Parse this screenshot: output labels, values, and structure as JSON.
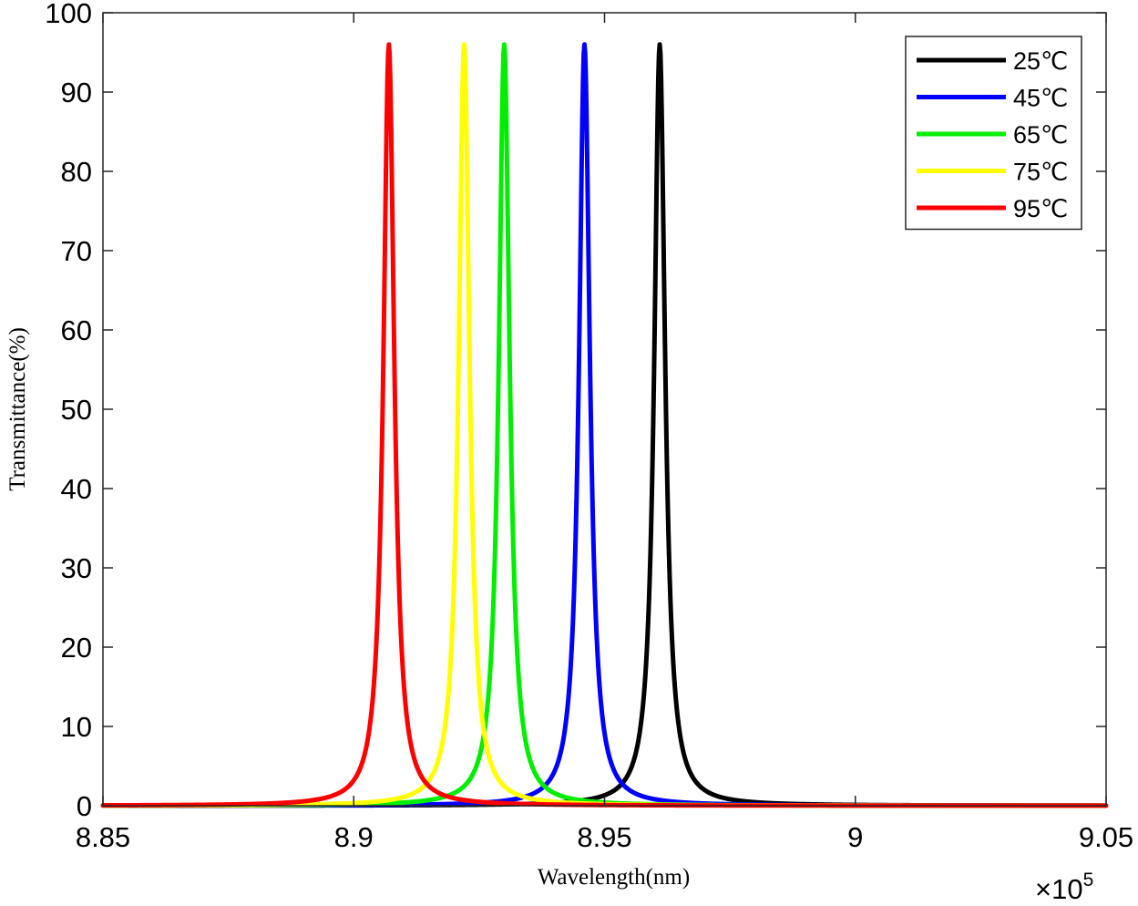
{
  "chart_data": {
    "type": "line",
    "title": "",
    "xlabel": "Wavelength(nm)",
    "ylabel": "Transmittance(%)",
    "x_multiplier_label": "×10",
    "x_multiplier_exponent": "5",
    "xlim": [
      8.85,
      9.05
    ],
    "ylim": [
      0,
      100
    ],
    "x_ticks": [
      8.85,
      8.9,
      8.95,
      9.0,
      9.05
    ],
    "x_tick_labels": [
      "8.85",
      "8.9",
      "8.95",
      "9",
      "9.05"
    ],
    "y_ticks": [
      0,
      10,
      20,
      30,
      40,
      50,
      60,
      70,
      80,
      90,
      100
    ],
    "y_tick_labels": [
      "0",
      "10",
      "20",
      "30",
      "40",
      "50",
      "60",
      "70",
      "80",
      "90",
      "100"
    ],
    "grid": false,
    "legend_position": "top-right",
    "peak_shape": "lorentzian",
    "series": [
      {
        "name": "25℃",
        "color": "#000000",
        "peak_x": 8.961,
        "peak_y": 96,
        "fwhm": 0.0026
      },
      {
        "name": "45℃",
        "color": "#0000ff",
        "peak_x": 8.946,
        "peak_y": 96,
        "fwhm": 0.0026
      },
      {
        "name": "65℃",
        "color": "#00ee00",
        "peak_x": 8.93,
        "peak_y": 96,
        "fwhm": 0.0026
      },
      {
        "name": "75℃",
        "color": "#ffff00",
        "peak_x": 8.922,
        "peak_y": 96,
        "fwhm": 0.0026
      },
      {
        "name": "95℃",
        "color": "#ff0000",
        "peak_x": 8.907,
        "peak_y": 96,
        "fwhm": 0.0026
      }
    ]
  }
}
